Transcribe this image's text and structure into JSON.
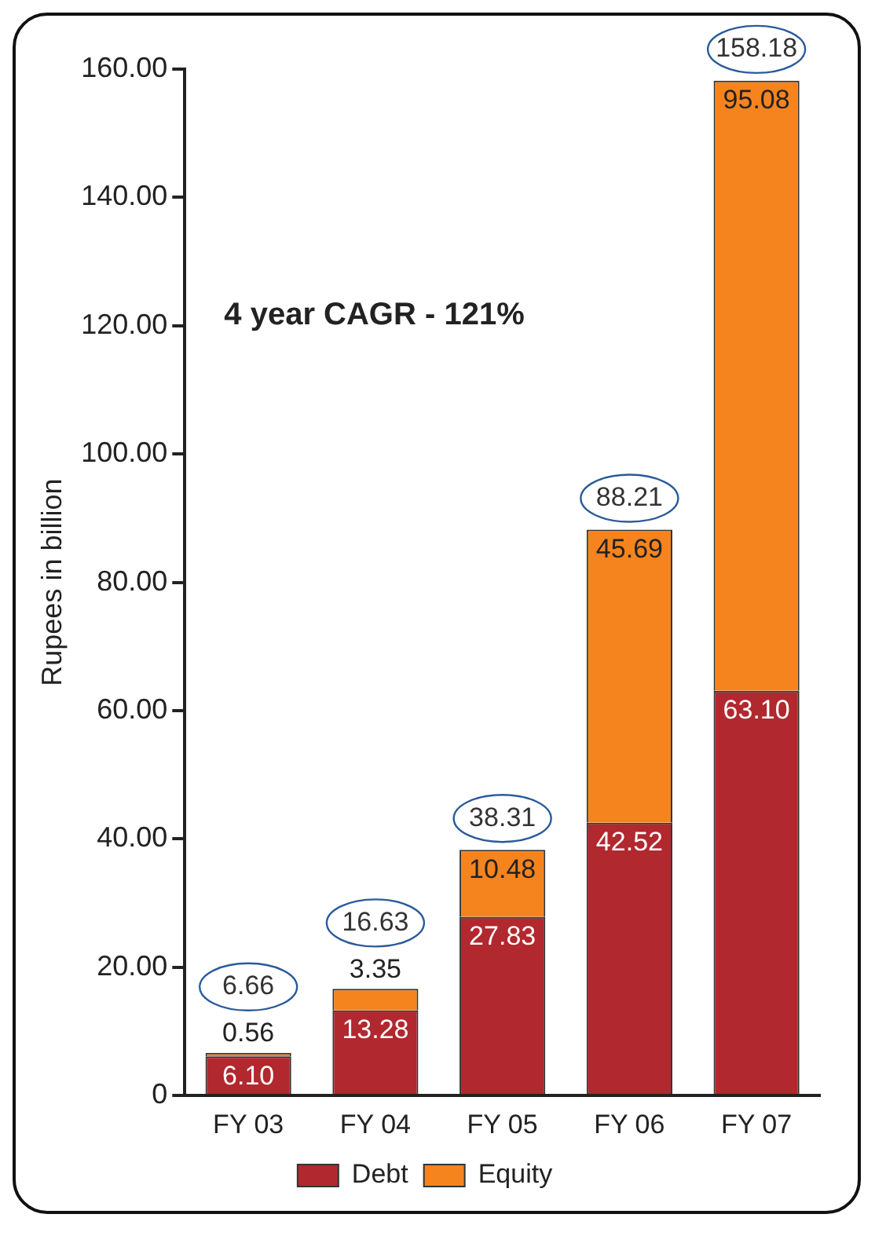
{
  "chart_data": {
    "type": "bar",
    "stacked": true,
    "ylabel": "Rupees in billion",
    "categories": [
      "FY 03",
      "FY 04",
      "FY 05",
      "FY 06",
      "FY 07"
    ],
    "series": [
      {
        "name": "Debt",
        "color": "#b1282e",
        "values": [
          6.1,
          13.28,
          27.83,
          42.52,
          63.1
        ],
        "value_labels": [
          "6.10",
          "13.28",
          "27.83",
          "42.52",
          "63.10"
        ]
      },
      {
        "name": "Equity",
        "color": "#f5841f",
        "values": [
          0.56,
          3.35,
          10.48,
          45.69,
          95.08
        ],
        "value_labels": [
          "0.56",
          "3.35",
          "10.48",
          "45.69",
          "95.08"
        ]
      }
    ],
    "totals": [
      "6.66",
      "16.63",
      "38.31",
      "88.21",
      "158.18"
    ],
    "ylim": [
      0,
      160
    ],
    "yticks": [
      {
        "value": 0,
        "label": "0"
      },
      {
        "value": 20,
        "label": "20.00"
      },
      {
        "value": 40,
        "label": "40.00"
      },
      {
        "value": 60,
        "label": "60.00"
      },
      {
        "value": 80,
        "label": "80.00"
      },
      {
        "value": 100,
        "label": "100.00"
      },
      {
        "value": 120,
        "label": "120.00"
      },
      {
        "value": 140,
        "label": "140.00"
      },
      {
        "value": 160,
        "label": "160.00"
      }
    ],
    "annotations": [
      "4 year CAGR - 121%"
    ],
    "grid": false,
    "legend": "bottom"
  }
}
